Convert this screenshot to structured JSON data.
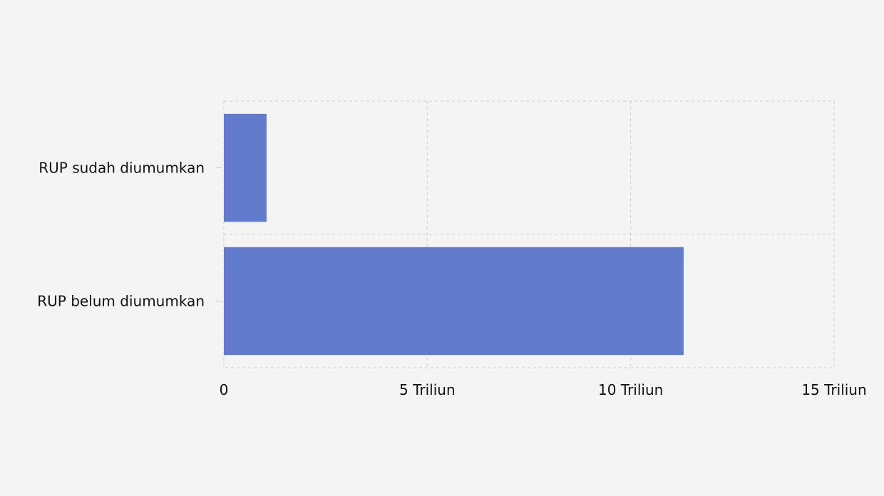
{
  "chart_data": {
    "type": "bar",
    "orientation": "horizontal",
    "categories": [
      "RUP sudah diumumkan",
      "RUP belum diumumkan"
    ],
    "values": [
      1.05,
      11.3
    ],
    "unit": "Triliun",
    "xlim": [
      0,
      15
    ],
    "xticks": [
      {
        "value": 0,
        "label": "0"
      },
      {
        "value": 5,
        "label": "5 Triliun"
      },
      {
        "value": 10,
        "label": "10 Triliun"
      },
      {
        "value": 15,
        "label": "15 Triliun"
      }
    ],
    "grid": true,
    "bar_color": "#627bcc",
    "grid_color": "#cccccc"
  }
}
